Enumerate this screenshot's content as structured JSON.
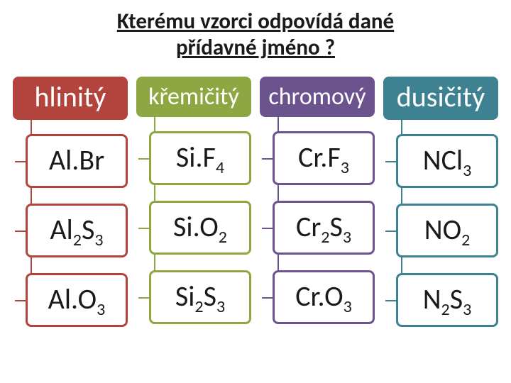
{
  "title_line1": "Kterému vzorci odpovídá dané",
  "title_line2": "přídavné jméno ?",
  "columns": [
    {
      "header": "hlinitý",
      "header_big": true,
      "color": "#b3443d",
      "cells": [
        "Al.Br",
        "Al_2S_3",
        "Al.O_3"
      ]
    },
    {
      "header": "křemičitý",
      "header_big": false,
      "color": "#8fa743",
      "cells": [
        "Si.F_4",
        "Si.O_2",
        "Si_2S_3"
      ]
    },
    {
      "header": "chromový",
      "header_big": false,
      "color": "#6b548e",
      "cells": [
        "Cr.F_3",
        "Cr_2S_3",
        "Cr.O_3"
      ]
    },
    {
      "header": "dusičitý",
      "header_big": true,
      "color": "#3e8190",
      "cells": [
        "NCl_3",
        "NO_2",
        "N_2S_3"
      ]
    }
  ],
  "cell_border_radius": 8,
  "cell_font_size": 40,
  "bg_color": "#ffffff"
}
